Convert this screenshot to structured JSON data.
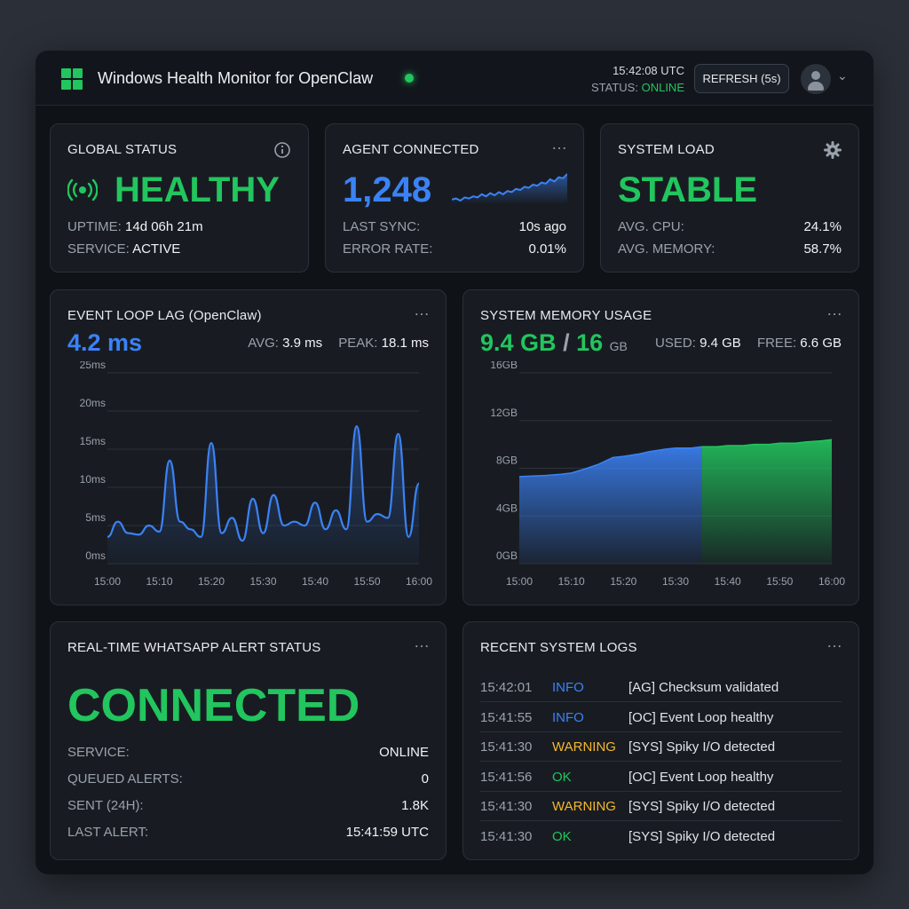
{
  "header": {
    "title": "Windows Health Monitor for OpenClaw",
    "time": "15:42:08 UTC",
    "status_label": "STATUS:",
    "status_value": "ONLINE",
    "refresh_label": "REFRESH (5s)",
    "icons": [
      "windows-logo-icon",
      "live-indicator-icon",
      "avatar-icon",
      "chevron-down-icon"
    ]
  },
  "colors": {
    "green": "#22c55e",
    "blue": "#3b82f6",
    "warning": "#f5b731",
    "card": "#181c22",
    "background": "#0f1318"
  },
  "global_status": {
    "title": "GLOBAL STATUS",
    "value": "HEALTHY",
    "uptime_label": "UPTIME:",
    "uptime_value": "14d 06h 21m",
    "service_label": "SERVICE:",
    "service_value": "ACTIVE",
    "icons": [
      "info-icon",
      "broadcast-icon"
    ]
  },
  "agent": {
    "title": "AGENT CONNECTED",
    "value": "1,248",
    "last_sync_label": "LAST SYNC:",
    "last_sync_value": "10s ago",
    "error_rate_label": "ERROR RATE:",
    "error_rate_value": "0.01%",
    "sparkline": [
      12,
      13,
      11,
      14,
      13,
      15,
      14,
      17,
      15,
      18,
      16,
      19,
      17,
      20,
      19,
      22,
      21,
      24,
      23,
      26,
      25,
      28,
      27,
      31,
      29,
      33,
      32,
      36
    ]
  },
  "system_load": {
    "title": "SYSTEM LOAD",
    "value": "STABLE",
    "cpu_label": "AVG. CPU:",
    "cpu_value": "24.1%",
    "mem_label": "AVG. MEMORY:",
    "mem_value": "58.7%",
    "icons": [
      "gear-icon"
    ]
  },
  "event_loop": {
    "title": "EVENT LOOP LAG (OpenClaw)",
    "current": "4.2 ms",
    "avg_label": "AVG:",
    "avg_value": "3.9 ms",
    "peak_label": "PEAK:",
    "peak_value": "18.1 ms"
  },
  "memory": {
    "title": "SYSTEM MEMORY USAGE",
    "used_big": "9.4 GB",
    "slash": "/",
    "total_big": "16",
    "total_unit": "GB",
    "used_label": "USED:",
    "used_value": "9.4 GB",
    "free_label": "FREE:",
    "free_value": "6.6 GB"
  },
  "chart_data": [
    {
      "type": "line",
      "x": [
        "15:00",
        "15:02",
        "15:04",
        "15:06",
        "15:08",
        "15:10",
        "15:12",
        "15:14",
        "15:16",
        "15:18",
        "15:20",
        "15:22",
        "15:24",
        "15:26",
        "15:28",
        "15:30",
        "15:32",
        "15:34",
        "15:36",
        "15:38",
        "15:40",
        "15:42",
        "15:44",
        "15:46",
        "15:48",
        "15:50",
        "15:52",
        "15:54",
        "15:56",
        "15:58",
        "16:00"
      ],
      "y": [
        3.5,
        5.5,
        4.0,
        3.8,
        5.0,
        4.2,
        13.5,
        5.5,
        4.5,
        3.5,
        15.8,
        4.0,
        6.0,
        3.0,
        8.5,
        4.0,
        9.0,
        5.0,
        5.5,
        5.0,
        8.0,
        4.5,
        7.0,
        4.5,
        18.0,
        5.5,
        6.5,
        6.0,
        17.0,
        3.5,
        10.5
      ],
      "ylim": [
        0,
        25
      ],
      "yticks": [
        "0ms",
        "5ms",
        "10ms",
        "15ms",
        "20ms",
        "25ms"
      ],
      "xticks": [
        "15:00",
        "15:10",
        "15:20",
        "15:30",
        "15:40",
        "15:50",
        "16:00"
      ],
      "series_color": "#3b82f6",
      "grid": true
    },
    {
      "type": "area",
      "x": [
        "15:00",
        "15:05",
        "15:08",
        "15:10",
        "15:13",
        "15:15",
        "15:18",
        "15:20",
        "15:23",
        "15:25",
        "15:28",
        "15:30",
        "15:33",
        "15:35",
        "15:38",
        "15:40",
        "15:43",
        "15:45",
        "15:48",
        "15:50",
        "15:53",
        "15:55",
        "15:58",
        "16:00"
      ],
      "y": [
        7.3,
        7.4,
        7.5,
        7.6,
        8.0,
        8.3,
        8.9,
        9.0,
        9.2,
        9.4,
        9.6,
        9.7,
        9.7,
        9.8,
        9.8,
        9.9,
        9.9,
        10.0,
        10.0,
        10.1,
        10.1,
        10.2,
        10.3,
        10.4
      ],
      "split_at": "15:35",
      "colors": [
        "#3b82f6",
        "#22c55e"
      ],
      "ylim": [
        0,
        16
      ],
      "yticks": [
        "0GB",
        "4GB",
        "8GB",
        "12GB",
        "16GB"
      ],
      "xticks": [
        "15:00",
        "15:10",
        "15:20",
        "15:30",
        "15:40",
        "15:50",
        "16:00"
      ],
      "grid": true
    }
  ],
  "whatsapp": {
    "title": "REAL-TIME WHATSAPP ALERT STATUS",
    "value": "CONNECTED",
    "rows": [
      {
        "label": "SERVICE:",
        "value": "ONLINE"
      },
      {
        "label": "QUEUED ALERTS:",
        "value": "0"
      },
      {
        "label": "SENT (24H):",
        "value": "1.8K"
      },
      {
        "label": "LAST ALERT:",
        "value": "15:41:59 UTC"
      }
    ]
  },
  "logs": {
    "title": "RECENT SYSTEM LOGS",
    "entries": [
      {
        "time": "15:42:01",
        "level": "INFO",
        "message": "[AG] Checksum validated"
      },
      {
        "time": "15:41:55",
        "level": "INFO",
        "message": "[OC] Event Loop healthy"
      },
      {
        "time": "15:41:30",
        "level": "WARNING",
        "message": "[SYS] Spiky I/O detected"
      },
      {
        "time": "15:41:56",
        "level": "OK",
        "message": "[OC] Event Loop healthy"
      },
      {
        "time": "15:41:30",
        "level": "WARNING",
        "message": "[SYS] Spiky I/O detected"
      },
      {
        "time": "15:41:30",
        "level": "OK",
        "message": "[SYS] Spiky I/O detected"
      }
    ]
  }
}
